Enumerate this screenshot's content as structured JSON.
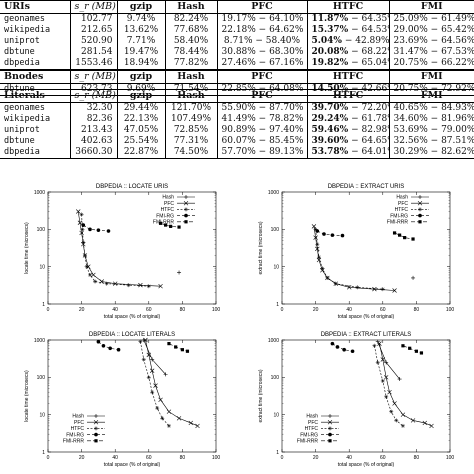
{
  "tables": [
    {
      "label": "URIs",
      "rows": [
        {
          "name": "geonames",
          "size": "102.77",
          "gzip": "9.74%",
          "hash": "82.24%",
          "pfc": "19.17% − 64.10%",
          "htfc_a": "11.87%",
          "htfc_b": " − 64.35%",
          "fmi": "25.09% − 61.49%"
        },
        {
          "name": "wikipedia",
          "size": "212.65",
          "gzip": "13.62%",
          "hash": "77.68%",
          "pfc": "22.18% − 64.62%",
          "htfc_a": "15.37%",
          "htfc_b": " − 64.53%",
          "fmi": "29.00% − 65.42%"
        },
        {
          "name": "uniprot",
          "size": "520.90",
          "gzip": "7.71%",
          "hash": "58.40%",
          "pfc": "8.71% − 58.40%",
          "htfc_a": "5.04%",
          "htfc_b": " − 42.89%",
          "fmi": "23.69% − 64.56%"
        },
        {
          "name": "dbtune",
          "size": "281.54",
          "gzip": "19.47%",
          "hash": "78.44%",
          "pfc": "30.88% − 68.30%",
          "htfc_a": "20.08%",
          "htfc_b": " − 68.22%",
          "fmi": "31.47% − 67.53%"
        },
        {
          "name": "dbpedia",
          "size": "1553.46",
          "gzip": "18.94%",
          "hash": "77.82%",
          "pfc": "27.46% − 67.16%",
          "htfc_a": "19.82%",
          "htfc_b": " − 65.04%",
          "fmi": "20.75% − 66.22%"
        }
      ]
    },
    {
      "label": "Bnodes",
      "rows": [
        {
          "name": "dbtune",
          "size": "623.73",
          "gzip": "9.69%",
          "hash": "71.54%",
          "pfc": "22.85% − 64.08%",
          "htfc_a": "14.50%",
          "htfc_b": " − 42.66%",
          "fmi": "20.75% − 72.92%"
        }
      ]
    },
    {
      "label": "Literals",
      "rows": [
        {
          "name": "geonames",
          "size": "32.30",
          "gzip": "29.44%",
          "hash": "121.70%",
          "pfc": "55.90% − 87.70%",
          "htfc_a": "39.70%",
          "htfc_b": " − 72.20%",
          "fmi": "40.65% − 84.93%"
        },
        {
          "name": "wikipedia",
          "size": "82.36",
          "gzip": "22.13%",
          "hash": "107.49%",
          "pfc": "41.49% − 78.82%",
          "htfc_a": "29.24%",
          "htfc_b": " − 61.78%",
          "fmi": "34.60% − 81.96%"
        },
        {
          "name": "uniprot",
          "size": "213.43",
          "gzip": "47.05%",
          "hash": "72.85%",
          "pfc": "90.89% − 97.40%",
          "htfc_a": "59.46%",
          "htfc_b": " − 82.98%",
          "fmi": "53.69% − 79.00%"
        },
        {
          "name": "dbtune",
          "size": "402.63",
          "gzip": "25.54%",
          "hash": "77.31%",
          "pfc": "60.07% − 85.45%",
          "htfc_a": "39.60%",
          "htfc_b": " − 64.65%",
          "fmi": "32.56% − 87.51%"
        },
        {
          "name": "dbpedia",
          "size": "3660.30",
          "gzip": "22.87%",
          "hash": "74.50%",
          "pfc": "57.70% − 89.13%",
          "htfc_a": "53.78%",
          "htfc_b": " − 64.01%",
          "fmi": "30.29% − 82.62%"
        }
      ]
    }
  ],
  "columns": {
    "size": "s_r (MB)",
    "gzip": "gzip",
    "hash": "Hash",
    "pfc": "PFC",
    "htfc": "HTFC",
    "fmi": "FMI"
  },
  "chart_data": [
    {
      "type": "scatter",
      "title": "DBPEDIA :: LOCATE URIS",
      "xlabel": "total space (% of original)",
      "ylabel": "locate time (microsecs)",
      "xlim": [
        0,
        100
      ],
      "ylim": [
        1,
        1000
      ],
      "yscale": "log",
      "legend": "top-right",
      "series": [
        {
          "name": "Hash",
          "x": [
            78
          ],
          "y": [
            7
          ]
        },
        {
          "name": "PFC",
          "x": [
            18,
            19,
            20,
            21,
            22,
            24,
            27,
            32,
            40,
            55,
            67
          ],
          "y": [
            300,
            150,
            80,
            40,
            20,
            10,
            6,
            4,
            3.5,
            3.2,
            3
          ]
        },
        {
          "name": "HTFC",
          "x": [
            20,
            20.5,
            21,
            22,
            23,
            25,
            28,
            35,
            48,
            60
          ],
          "y": [
            250,
            100,
            45,
            20,
            10,
            6,
            4,
            3.5,
            3.2,
            3
          ]
        },
        {
          "name": "FMI-RG",
          "x": [
            21,
            25,
            30,
            36
          ],
          "y": [
            130,
            100,
            95,
            90
          ]
        },
        {
          "name": "FMI-RRR",
          "x": [
            67,
            70,
            73,
            78
          ],
          "y": [
            145,
            130,
            120,
            115
          ]
        }
      ]
    },
    {
      "type": "scatter",
      "title": "DBPEDIA :: EXTRACT URIS",
      "xlabel": "total space (% of original)",
      "ylabel": "extract time (microsecs)",
      "xlim": [
        0,
        100
      ],
      "ylim": [
        1,
        1000
      ],
      "yscale": "log",
      "legend": "top-right",
      "series": [
        {
          "name": "Hash",
          "x": [
            78
          ],
          "y": [
            5
          ]
        },
        {
          "name": "PFC",
          "x": [
            19,
            20,
            21,
            22,
            24,
            27,
            32,
            40,
            55,
            67
          ],
          "y": [
            120,
            60,
            30,
            15,
            8,
            5,
            3.5,
            2.8,
            2.5,
            2.3
          ]
        },
        {
          "name": "HTFC",
          "x": [
            20,
            21,
            22,
            24,
            27,
            32,
            45,
            60
          ],
          "y": [
            100,
            40,
            18,
            9,
            5,
            3.5,
            2.8,
            2.5
          ]
        },
        {
          "name": "FMI-RG",
          "x": [
            21,
            25,
            30,
            36
          ],
          "y": [
            90,
            75,
            70,
            68
          ]
        },
        {
          "name": "FMI-RRR",
          "x": [
            67,
            70,
            73,
            78
          ],
          "y": [
            80,
            70,
            60,
            55
          ]
        }
      ]
    },
    {
      "type": "scatter",
      "title": "DBPEDIA :: LOCATE LITERALS",
      "xlabel": "total space (% of original)",
      "ylabel": "locate time (microsecs)",
      "xlim": [
        0,
        100
      ],
      "ylim": [
        1,
        1000
      ],
      "yscale": "log",
      "legend": "bottom-left",
      "series": [
        {
          "name": "Hash",
          "x": [
            57,
            62,
            70
          ],
          "y": [
            1000,
            300,
            120
          ]
        },
        {
          "name": "PFC",
          "x": [
            58,
            60,
            62,
            64,
            67,
            72,
            78,
            85,
            89
          ],
          "y": [
            1000,
            400,
            150,
            60,
            25,
            12,
            8,
            6,
            5
          ]
        },
        {
          "name": "HTFC",
          "x": [
            55,
            57,
            60,
            62,
            65,
            68,
            72
          ],
          "y": [
            900,
            300,
            100,
            40,
            15,
            8,
            5
          ]
        },
        {
          "name": "FMI-RG",
          "x": [
            30,
            33,
            37,
            42
          ],
          "y": [
            900,
            700,
            600,
            550
          ]
        },
        {
          "name": "FMI-RRR",
          "x": [
            72,
            76,
            80,
            83
          ],
          "y": [
            800,
            650,
            550,
            500
          ]
        }
      ]
    },
    {
      "type": "scatter",
      "title": "DBPEDIA :: EXTRACT LITERALS",
      "xlabel": "total space (% of original)",
      "ylabel": "extract time (microsecs)",
      "xlim": [
        0,
        100
      ],
      "ylim": [
        1,
        1000
      ],
      "yscale": "log",
      "legend": "bottom-left",
      "series": [
        {
          "name": "Hash",
          "x": [
            57,
            62,
            70
          ],
          "y": [
            900,
            250,
            90
          ]
        },
        {
          "name": "PFC",
          "x": [
            58,
            60,
            62,
            64,
            67,
            72,
            78,
            85,
            89
          ],
          "y": [
            800,
            300,
            100,
            40,
            20,
            10,
            7,
            6,
            5
          ]
        },
        {
          "name": "HTFC",
          "x": [
            55,
            57,
            60,
            62,
            65,
            68,
            72
          ],
          "y": [
            700,
            250,
            80,
            30,
            12,
            7,
            5
          ]
        },
        {
          "name": "FMI-RG",
          "x": [
            30,
            33,
            37,
            42
          ],
          "y": [
            800,
            650,
            550,
            500
          ]
        },
        {
          "name": "FMI-RRR",
          "x": [
            72,
            76,
            80,
            83
          ],
          "y": [
            700,
            600,
            500,
            450
          ]
        }
      ]
    }
  ]
}
